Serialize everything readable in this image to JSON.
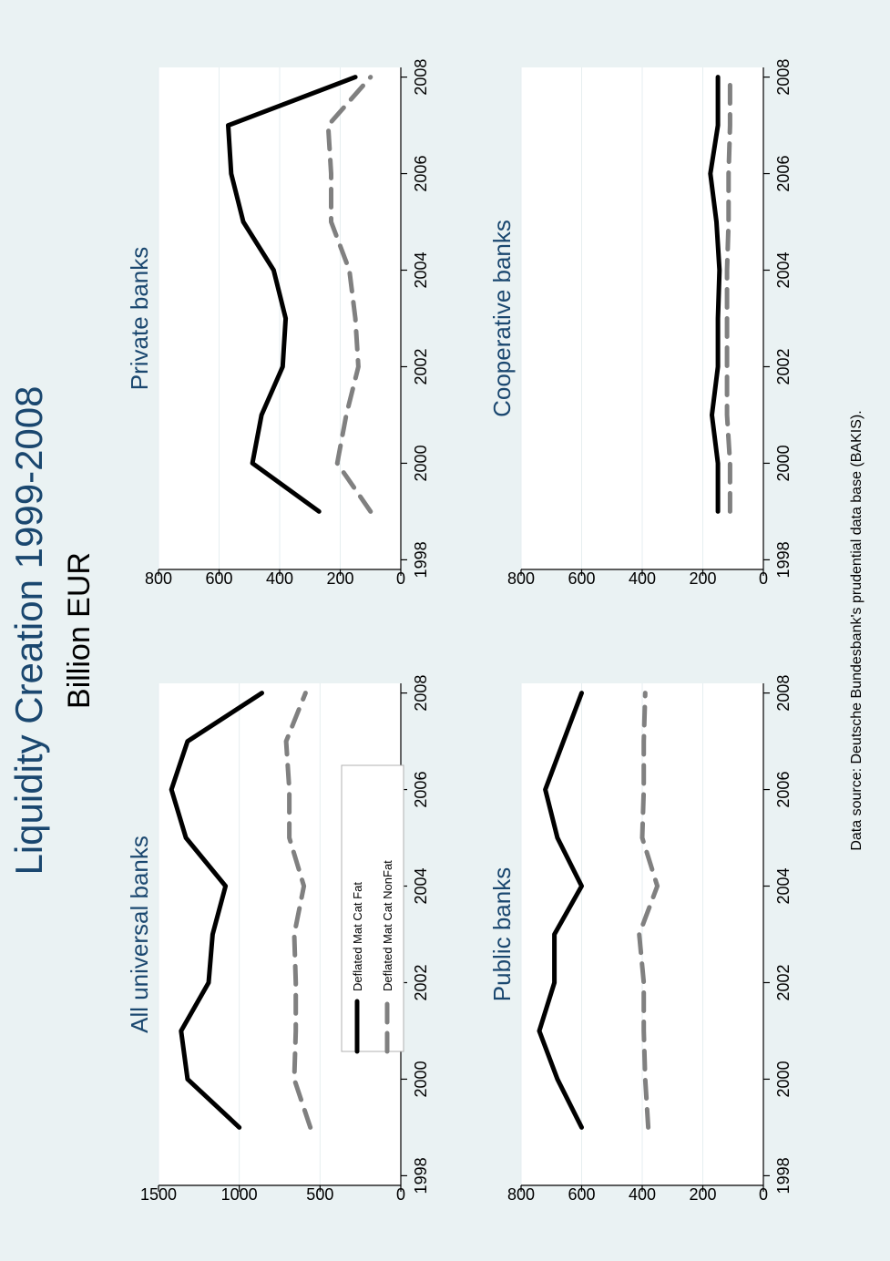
{
  "title": "Liquidity Creation 1999-2008",
  "subtitle": "Billion EUR",
  "source_note": "Data source: Deutsche Bundesbank's prudential data base (BAKIS).",
  "colors": {
    "fat": "#000000",
    "nonfat": "#808080",
    "title": "#1a476f",
    "background": "#eaf2f3",
    "plot": "#ffffff",
    "grid": "#e6eef0"
  },
  "legend": {
    "items": [
      "Deflated Mat Cat Fat",
      "Deflated Mat Cat NonFat"
    ]
  },
  "chart_data": [
    {
      "type": "line",
      "title": "All universal banks",
      "x": [
        1999,
        2000,
        2001,
        2002,
        2003,
        2004,
        2005,
        2006,
        2007,
        2008
      ],
      "xticks": [
        1998,
        2000,
        2002,
        2004,
        2006,
        2008
      ],
      "xlim": [
        1997.8,
        2008.2
      ],
      "ylim": [
        0,
        1500
      ],
      "yticks": [
        0,
        500,
        1000,
        1500
      ],
      "series": [
        {
          "name": "Deflated Mat Cat Fat",
          "values": [
            1000,
            1320,
            1360,
            1190,
            1165,
            1085,
            1330,
            1420,
            1320,
            860
          ]
        },
        {
          "name": "Deflated Mat Cat NonFat",
          "values": [
            560,
            660,
            650,
            650,
            660,
            600,
            690,
            690,
            710,
            590
          ]
        }
      ],
      "legend": "inside-bottom",
      "grid": true
    },
    {
      "type": "line",
      "title": "Private banks",
      "x": [
        1999,
        2000,
        2001,
        2002,
        2003,
        2004,
        2005,
        2006,
        2007,
        2008
      ],
      "xticks": [
        1998,
        2000,
        2002,
        2004,
        2006,
        2008
      ],
      "xlim": [
        1997.8,
        2008.2
      ],
      "ylim": [
        0,
        800
      ],
      "yticks": [
        0,
        200,
        400,
        600,
        800
      ],
      "series": [
        {
          "name": "Deflated Mat Cat Fat",
          "values": [
            270,
            490,
            460,
            390,
            380,
            420,
            520,
            560,
            570,
            150
          ]
        },
        {
          "name": "Deflated Mat Cat NonFat",
          "values": [
            100,
            210,
            180,
            140,
            150,
            170,
            230,
            230,
            240,
            100
          ]
        }
      ],
      "grid": true
    },
    {
      "type": "line",
      "title": "Public banks",
      "x": [
        1999,
        2000,
        2001,
        2002,
        2003,
        2004,
        2005,
        2006,
        2007,
        2008
      ],
      "xticks": [
        1998,
        2000,
        2002,
        2004,
        2006,
        2008
      ],
      "xlim": [
        1997.8,
        2008.2
      ],
      "ylim": [
        0,
        800
      ],
      "yticks": [
        0,
        200,
        400,
        600,
        800
      ],
      "series": [
        {
          "name": "Deflated Mat Cat Fat",
          "values": [
            600,
            680,
            740,
            690,
            690,
            600,
            680,
            720,
            660,
            600
          ]
        },
        {
          "name": "Deflated Mat Cat NonFat",
          "values": [
            380,
            390,
            395,
            395,
            410,
            350,
            400,
            395,
            395,
            390
          ]
        }
      ],
      "grid": true
    },
    {
      "type": "line",
      "title": "Cooperative banks",
      "x": [
        1999,
        2000,
        2001,
        2002,
        2003,
        2004,
        2005,
        2006,
        2007,
        2008
      ],
      "xticks": [
        1998,
        2000,
        2002,
        2004,
        2006,
        2008
      ],
      "xlim": [
        1997.8,
        2008.2
      ],
      "ylim": [
        0,
        800
      ],
      "yticks": [
        0,
        200,
        400,
        600,
        800
      ],
      "series": [
        {
          "name": "Deflated Mat Cat Fat",
          "values": [
            150,
            150,
            170,
            150,
            150,
            145,
            155,
            175,
            150,
            150
          ]
        },
        {
          "name": "Deflated Mat Cat NonFat",
          "values": [
            110,
            110,
            120,
            120,
            120,
            120,
            115,
            115,
            110,
            110
          ]
        }
      ],
      "grid": true
    }
  ]
}
